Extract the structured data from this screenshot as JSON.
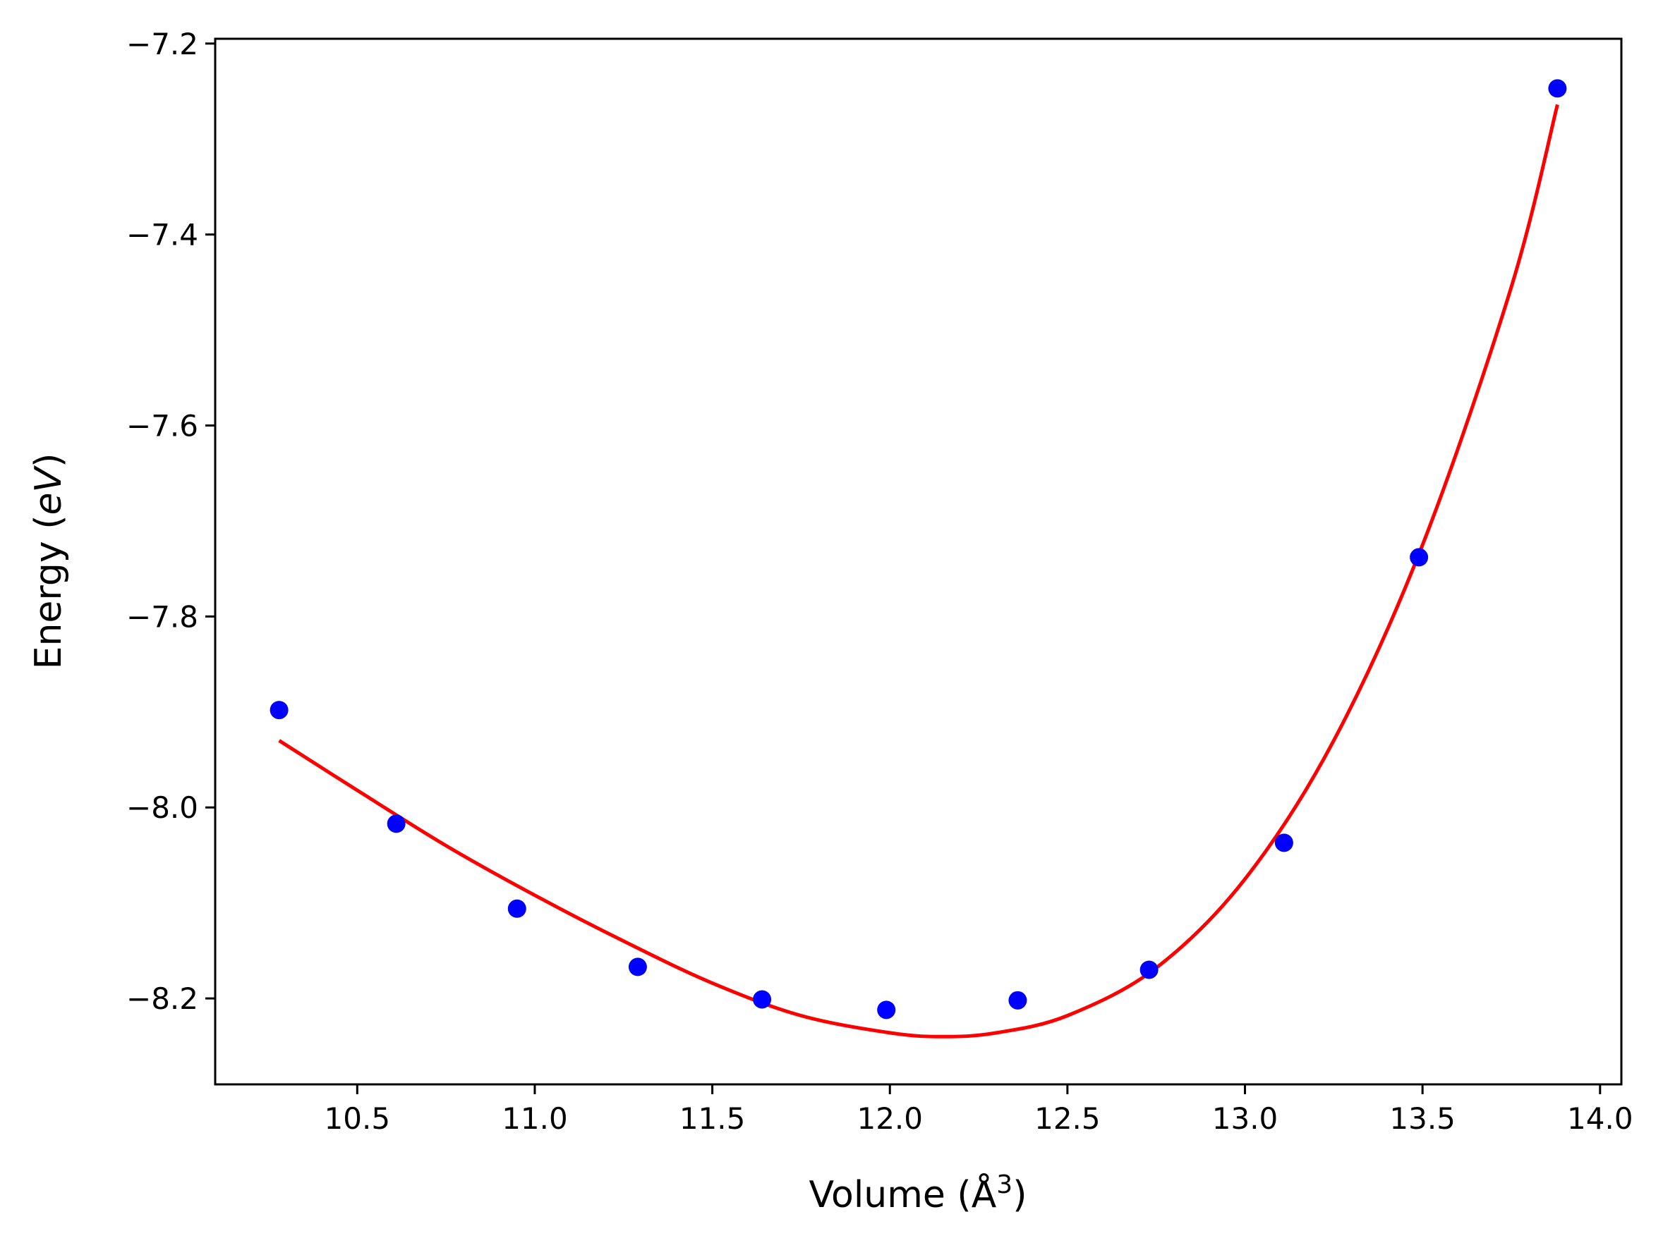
{
  "chart_data": {
    "type": "scatter",
    "title": "",
    "xlabel": "Volume ($\\AA^3$)",
    "ylabel": "Energy ($eV$)",
    "xlim": [
      10.1,
      14.06
    ],
    "ylim": [
      -8.29,
      -7.195
    ],
    "xticks": [
      "10.5",
      "11.0",
      "11.5",
      "12.0",
      "12.5",
      "13.0",
      "13.5",
      "14.0"
    ],
    "xtick_values": [
      10.5,
      11.0,
      11.5,
      12.0,
      12.5,
      13.0,
      13.5,
      14.0
    ],
    "yticks": [
      "−7.2",
      "−7.4",
      "−7.6",
      "−7.8",
      "−8.0",
      "−8.2"
    ],
    "ytick_values": [
      -7.2,
      -7.4,
      -7.6,
      -7.8,
      -8.0,
      -8.2
    ],
    "grid": false,
    "series": [
      {
        "kind": "points",
        "color": "#0000ff",
        "x": [
          10.28,
          10.61,
          10.95,
          11.29,
          11.64,
          11.99,
          12.36,
          12.73,
          13.11,
          13.49,
          13.88
        ],
        "y": [
          -7.898,
          -8.017,
          -8.106,
          -8.167,
          -8.201,
          -8.212,
          -8.202,
          -8.17,
          -8.037,
          -7.738,
          -7.247
        ]
      },
      {
        "kind": "fit-curve",
        "color": "#ff0000",
        "x": [
          10.28,
          10.5,
          10.75,
          11.0,
          11.25,
          11.5,
          11.75,
          12.0,
          12.15,
          12.3,
          12.5,
          12.75,
          13.0,
          13.25,
          13.5,
          13.75,
          13.88
        ],
        "y": [
          -7.93,
          -7.982,
          -8.04,
          -8.092,
          -8.14,
          -8.184,
          -8.218,
          -8.236,
          -8.24,
          -8.236,
          -8.218,
          -8.168,
          -8.075,
          -7.93,
          -7.725,
          -7.455,
          -7.264
        ]
      }
    ]
  }
}
